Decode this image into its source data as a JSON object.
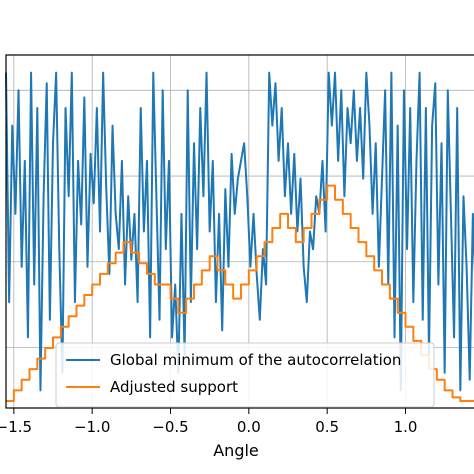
{
  "chart_data": {
    "type": "line",
    "title": "",
    "xlabel": "Angle",
    "ylabel": "",
    "xlim": [
      -1.55,
      1.45
    ],
    "ylim": [
      0,
      1
    ],
    "grid": true,
    "legend_position": "lower-center",
    "x_ticks": [
      {
        "value": -1.5,
        "label": "−1.5"
      },
      {
        "value": -1.0,
        "label": "−1.0"
      },
      {
        "value": -0.5,
        "label": "−0.5"
      },
      {
        "value": 0.0,
        "label": "0.0"
      },
      {
        "value": 0.5,
        "label": "0.5"
      },
      {
        "value": 1.0,
        "label": "1.0"
      }
    ],
    "y_grid": [
      0.1714,
      0.4142,
      0.6571,
      0.9
    ],
    "series": [
      {
        "name": "Global minimum of the autocorrelation",
        "color": "#1f77b4",
        "x": [
          -1.55,
          -1.53,
          -1.51,
          -1.49,
          -1.47,
          -1.45,
          -1.43,
          -1.41,
          -1.39,
          -1.37,
          -1.35,
          -1.33,
          -1.31,
          -1.29,
          -1.27,
          -1.25,
          -1.23,
          -1.21,
          -1.19,
          -1.17,
          -1.15,
          -1.13,
          -1.11,
          -1.09,
          -1.07,
          -1.05,
          -1.03,
          -1.01,
          -0.99,
          -0.97,
          -0.95,
          -0.93,
          -0.91,
          -0.89,
          -0.87,
          -0.85,
          -0.83,
          -0.81,
          -0.79,
          -0.77,
          -0.75,
          -0.73,
          -0.71,
          -0.69,
          -0.67,
          -0.65,
          -0.63,
          -0.61,
          -0.59,
          -0.57,
          -0.55,
          -0.53,
          -0.51,
          -0.49,
          -0.47,
          -0.45,
          -0.43,
          -0.41,
          -0.39,
          -0.37,
          -0.35,
          -0.33,
          -0.31,
          -0.29,
          -0.27,
          -0.25,
          -0.23,
          -0.21,
          -0.19,
          -0.17,
          -0.15,
          -0.13,
          -0.11,
          -0.09,
          -0.07,
          -0.05,
          -0.03,
          -0.01,
          0.01,
          0.03,
          0.05,
          0.07,
          0.09,
          0.11,
          0.13,
          0.15,
          0.17,
          0.19,
          0.21,
          0.23,
          0.25,
          0.27,
          0.29,
          0.31,
          0.33,
          0.35,
          0.37,
          0.39,
          0.41,
          0.43,
          0.45,
          0.47,
          0.49,
          0.51,
          0.53,
          0.55,
          0.57,
          0.59,
          0.61,
          0.63,
          0.65,
          0.67,
          0.69,
          0.71,
          0.73,
          0.75,
          0.77,
          0.79,
          0.81,
          0.83,
          0.85,
          0.87,
          0.89,
          0.91,
          0.93,
          0.95,
          0.97,
          0.99,
          1.01,
          1.03,
          1.05,
          1.07,
          1.09,
          1.11,
          1.13,
          1.15,
          1.17,
          1.19,
          1.21,
          1.23,
          1.25,
          1.27,
          1.29,
          1.31,
          1.33,
          1.35,
          1.37,
          1.39,
          1.41,
          1.43,
          1.45
        ],
        "y": [
          0.95,
          0.3,
          0.8,
          0.55,
          0.9,
          0.4,
          0.7,
          0.2,
          0.95,
          0.35,
          0.85,
          0.05,
          0.6,
          0.92,
          0.25,
          0.75,
          0.95,
          0.45,
          0.1,
          0.85,
          0.6,
          0.95,
          0.3,
          0.7,
          0.52,
          0.88,
          0.4,
          0.72,
          0.58,
          0.85,
          0.5,
          0.95,
          0.62,
          0.38,
          0.8,
          0.55,
          0.45,
          0.7,
          0.35,
          0.6,
          0.42,
          0.55,
          0.3,
          0.85,
          0.5,
          0.7,
          0.2,
          0.95,
          0.6,
          0.25,
          0.9,
          0.45,
          0.7,
          0.2,
          0.35,
          0.1,
          0.55,
          0.15,
          0.9,
          0.3,
          0.75,
          0.45,
          0.85,
          0.6,
          0.95,
          0.5,
          0.7,
          0.3,
          0.55,
          0.22,
          0.62,
          0.4,
          0.72,
          0.55,
          0.65,
          0.7,
          0.75,
          0.6,
          0.4,
          0.55,
          0.38,
          0.25,
          0.45,
          0.35,
          0.95,
          0.8,
          0.92,
          0.7,
          0.85,
          0.6,
          0.75,
          0.55,
          0.72,
          0.5,
          0.65,
          0.4,
          0.3,
          0.5,
          0.45,
          0.6,
          0.55,
          0.7,
          0.5,
          0.95,
          0.8,
          0.95,
          0.7,
          0.9,
          0.6,
          0.85,
          0.75,
          0.9,
          0.7,
          0.85,
          0.65,
          0.95,
          0.8,
          0.55,
          0.75,
          0.4,
          0.65,
          0.9,
          0.35,
          0.95,
          0.2,
          0.8,
          0.05,
          0.9,
          0.45,
          0.85,
          0.3,
          0.7,
          0.95,
          0.25,
          0.85,
          0.15,
          0.8,
          0.92,
          0.35,
          0.75,
          0.1,
          0.9,
          0.55,
          0.2,
          0.85,
          0.05,
          0.6,
          0.4,
          0.08,
          0.55,
          0.3
        ]
      },
      {
        "name": "Adjusted support",
        "color": "#ff7f0e",
        "x": [
          -1.55,
          -1.5,
          -1.45,
          -1.4,
          -1.35,
          -1.3,
          -1.25,
          -1.2,
          -1.15,
          -1.1,
          -1.05,
          -1.0,
          -0.95,
          -0.9,
          -0.85,
          -0.8,
          -0.75,
          -0.7,
          -0.65,
          -0.6,
          -0.55,
          -0.5,
          -0.45,
          -0.4,
          -0.35,
          -0.3,
          -0.25,
          -0.2,
          -0.15,
          -0.1,
          -0.05,
          0.0,
          0.05,
          0.1,
          0.15,
          0.2,
          0.25,
          0.3,
          0.35,
          0.4,
          0.45,
          0.5,
          0.55,
          0.6,
          0.65,
          0.7,
          0.75,
          0.8,
          0.85,
          0.9,
          0.95,
          1.0,
          1.05,
          1.1,
          1.15,
          1.2,
          1.25,
          1.3,
          1.35,
          1.4,
          1.45
        ],
        "y": [
          0.02,
          0.05,
          0.08,
          0.11,
          0.14,
          0.17,
          0.2,
          0.23,
          0.26,
          0.29,
          0.32,
          0.35,
          0.38,
          0.41,
          0.44,
          0.47,
          0.44,
          0.41,
          0.38,
          0.35,
          0.35,
          0.31,
          0.27,
          0.31,
          0.35,
          0.39,
          0.43,
          0.39,
          0.35,
          0.31,
          0.35,
          0.39,
          0.43,
          0.47,
          0.51,
          0.55,
          0.51,
          0.47,
          0.51,
          0.55,
          0.59,
          0.63,
          0.59,
          0.55,
          0.51,
          0.47,
          0.43,
          0.39,
          0.35,
          0.31,
          0.27,
          0.23,
          0.19,
          0.15,
          0.11,
          0.08,
          0.05,
          0.03,
          0.02,
          0.02,
          0.02
        ]
      }
    ]
  }
}
